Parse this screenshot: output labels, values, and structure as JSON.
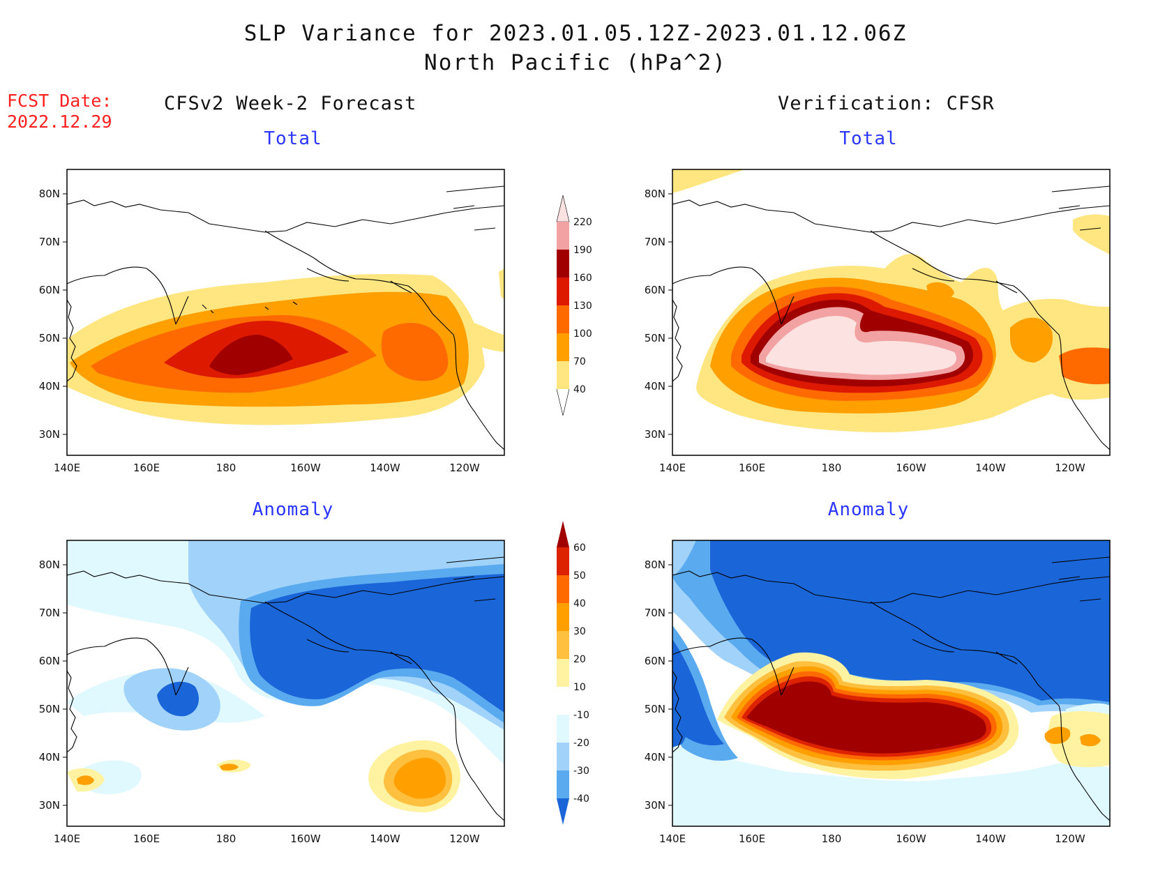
{
  "header": {
    "title_line1": "SLP Variance for 2023.01.05.12Z-2023.01.12.06Z",
    "title_line2": "North Pacific (hPa^2)"
  },
  "fcst": {
    "line1": "FCST Date:",
    "line2": "2022.12.29"
  },
  "columns": {
    "left": "CFSv2 Week-2 Forecast",
    "right": "Verification: CFSR"
  },
  "panels": [
    {
      "id": "fcst-total",
      "title": "Total"
    },
    {
      "id": "verif-total",
      "title": "Total"
    },
    {
      "id": "fcst-anom",
      "title": "Anomaly"
    },
    {
      "id": "verif-anom",
      "title": "Anomaly"
    }
  ],
  "axes": {
    "lat_ticks": [
      "80N",
      "70N",
      "60N",
      "50N",
      "40N",
      "30N"
    ],
    "lon_ticks": [
      "140E",
      "160E",
      "180",
      "160W",
      "140W",
      "120W"
    ]
  },
  "colorbars": {
    "total": {
      "levels": [
        "220",
        "190",
        "160",
        "130",
        "100",
        "70",
        "40"
      ],
      "colors": [
        "#fde2e2",
        "#f2a2a2",
        "#a00000",
        "#dd1a00",
        "#ff6a00",
        "#ffa000",
        "#ffe680"
      ]
    },
    "anomaly": {
      "levels": [
        "60",
        "50",
        "40",
        "30",
        "20",
        "10",
        "-10",
        "-20",
        "-30",
        "-40"
      ],
      "colors": [
        "#a00000",
        "#dd2200",
        "#ff6a00",
        "#ffa000",
        "#ffc040",
        "#fff2a0",
        "#ffffff",
        "#e0f8ff",
        "#a0d2fa",
        "#5aaaf0",
        "#1a66d8"
      ]
    }
  }
}
